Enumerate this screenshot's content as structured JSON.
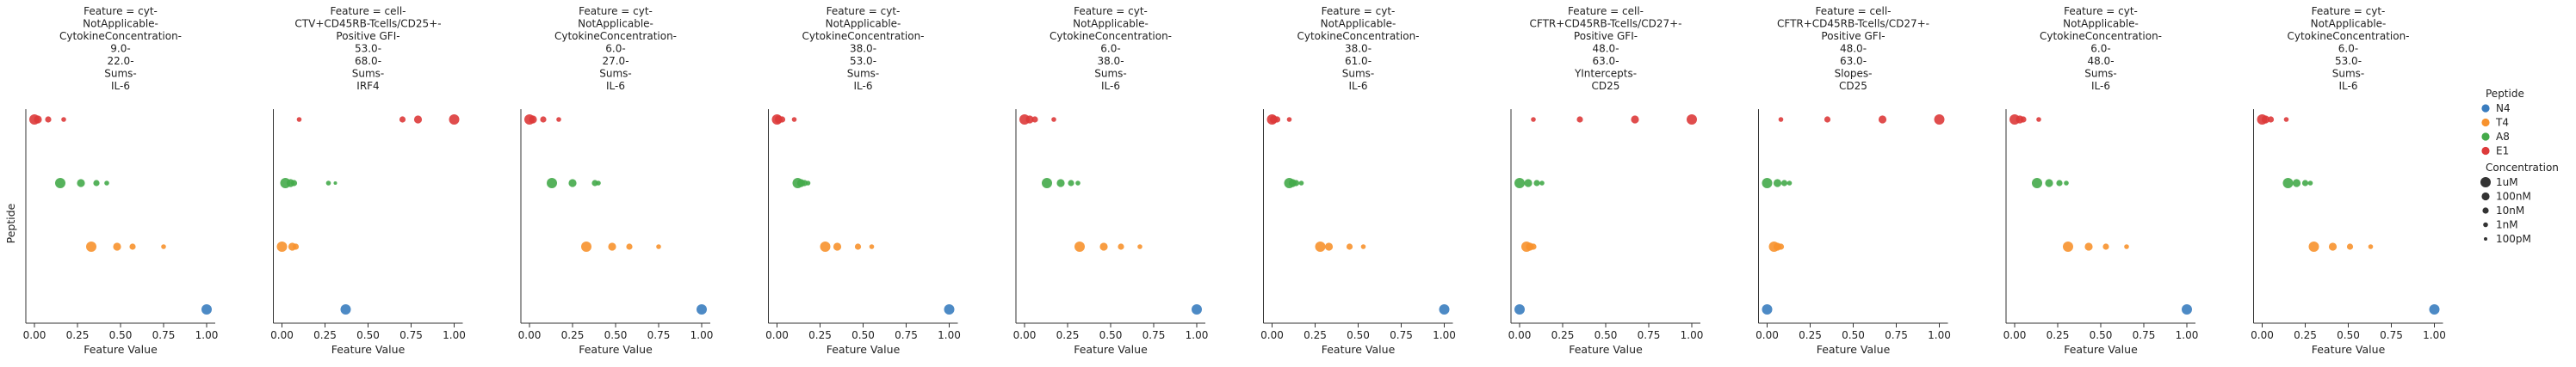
{
  "chart_data": {
    "type": "scatter",
    "xlabel": "Feature Value",
    "ylabel": "Peptide",
    "xlim": [
      -0.05,
      1.05
    ],
    "xticks": [
      0.0,
      0.25,
      0.5,
      0.75,
      1.0
    ],
    "xtick_labels": [
      "0.00",
      "0.25",
      "0.50",
      "0.75",
      "1.00"
    ],
    "y_order": [
      "E1",
      "A8",
      "T4",
      "N4"
    ],
    "peptides": [
      {
        "name": "N4",
        "color": "#3a7dbf"
      },
      {
        "name": "T4",
        "color": "#f7922e"
      },
      {
        "name": "A8",
        "color": "#44aa4a"
      },
      {
        "name": "E1",
        "color": "#dd3a3a"
      }
    ],
    "concentrations": [
      "1uM",
      "100nM",
      "10nM",
      "1nM",
      "100pM"
    ],
    "legend": {
      "hue_title": "Peptide",
      "size_title": "Concentration",
      "hue_entries": [
        "N4",
        "T4",
        "A8",
        "E1"
      ],
      "size_entries": [
        "1uM",
        "100nM",
        "10nM",
        "1nM",
        "100pM"
      ],
      "placement": "right"
    },
    "panels": [
      {
        "title_lines": [
          "Feature = cyt-",
          "NotApplicable-",
          "CytokineConcentration-",
          "9.0-",
          "22.0-",
          "Sums-",
          "IL-6"
        ],
        "series": {
          "N4": [
            1.0
          ],
          "T4": [
            0.33,
            0.48,
            0.57,
            0.75
          ],
          "A8": [
            0.15,
            0.27,
            0.36,
            0.42
          ],
          "E1": [
            0.0,
            0.02,
            0.08,
            0.17
          ]
        }
      },
      {
        "title_lines": [
          "Feature = cell-",
          "CTV+CD45RB-Tcells/CD25+-",
          "Positive GFI-",
          "53.0-",
          "68.0-",
          "Sums-",
          "IRF4"
        ],
        "series": {
          "N4": [
            0.37
          ],
          "T4": [
            0.0,
            0.06,
            0.08
          ],
          "A8": [
            0.02,
            0.05,
            0.07,
            0.27,
            0.31
          ],
          "E1": [
            1.0,
            0.79,
            0.7,
            0.1
          ]
        }
      },
      {
        "title_lines": [
          "Feature = cyt-",
          "NotApplicable-",
          "CytokineConcentration-",
          "6.0-",
          "27.0-",
          "Sums-",
          "IL-6"
        ],
        "series": {
          "N4": [
            1.0
          ],
          "T4": [
            0.33,
            0.48,
            0.58,
            0.75
          ],
          "A8": [
            0.13,
            0.25,
            0.38,
            0.4
          ],
          "E1": [
            0.0,
            0.02,
            0.08,
            0.17
          ]
        }
      },
      {
        "title_lines": [
          "Feature = cyt-",
          "NotApplicable-",
          "CytokineConcentration-",
          "38.0-",
          "53.0-",
          "Sums-",
          "IL-6"
        ],
        "series": {
          "N4": [
            1.0
          ],
          "T4": [
            0.28,
            0.35,
            0.47,
            0.55
          ],
          "A8": [
            0.12,
            0.14,
            0.16,
            0.18
          ],
          "E1": [
            0.0,
            0.01,
            0.03,
            0.1
          ]
        }
      },
      {
        "title_lines": [
          "Feature = cyt-",
          "NotApplicable-",
          "CytokineConcentration-",
          "6.0-",
          "38.0-",
          "Sums-",
          "IL-6"
        ],
        "series": {
          "N4": [
            1.0
          ],
          "T4": [
            0.32,
            0.46,
            0.56,
            0.67
          ],
          "A8": [
            0.13,
            0.21,
            0.27,
            0.31
          ],
          "E1": [
            0.0,
            0.03,
            0.06,
            0.17
          ]
        }
      },
      {
        "title_lines": [
          "Feature = cyt-",
          "NotApplicable-",
          "CytokineConcentration-",
          "38.0-",
          "61.0-",
          "Sums-",
          "IL-6"
        ],
        "series": {
          "N4": [
            1.0
          ],
          "T4": [
            0.28,
            0.33,
            0.45,
            0.53
          ],
          "A8": [
            0.1,
            0.12,
            0.14,
            0.17
          ],
          "E1": [
            0.0,
            0.01,
            0.03,
            0.1
          ]
        }
      },
      {
        "title_lines": [
          "Feature = cell-",
          "CFTR+CD45RB-Tcells/CD27+-",
          "Positive GFI-",
          "48.0-",
          "63.0-",
          "YIntercepts-",
          "CD25"
        ],
        "series": {
          "N4": [
            0.0
          ],
          "T4": [
            0.04,
            0.06,
            0.08
          ],
          "A8": [
            0.0,
            0.05,
            0.1,
            0.13
          ],
          "E1": [
            1.0,
            0.67,
            0.35,
            0.08
          ]
        }
      },
      {
        "title_lines": [
          "Feature = cell-",
          "CFTR+CD45RB-Tcells/CD27+-",
          "Positive GFI-",
          "48.0-",
          "63.0-",
          "Slopes-",
          "CD25"
        ],
        "series": {
          "N4": [
            0.0
          ],
          "T4": [
            0.04,
            0.06,
            0.08
          ],
          "A8": [
            0.0,
            0.06,
            0.1,
            0.13
          ],
          "E1": [
            1.0,
            0.67,
            0.35,
            0.08
          ]
        }
      },
      {
        "title_lines": [
          "Feature = cyt-",
          "NotApplicable-",
          "CytokineConcentration-",
          "6.0-",
          "48.0-",
          "Sums-",
          "IL-6"
        ],
        "series": {
          "N4": [
            1.0
          ],
          "T4": [
            0.31,
            0.43,
            0.53,
            0.65
          ],
          "A8": [
            0.13,
            0.2,
            0.26,
            0.3
          ],
          "E1": [
            0.0,
            0.03,
            0.05,
            0.14
          ]
        }
      },
      {
        "title_lines": [
          "Feature = cyt-",
          "NotApplicable-",
          "CytokineConcentration-",
          "6.0-",
          "53.0-",
          "Sums-",
          "IL-6"
        ],
        "series": {
          "N4": [
            1.0
          ],
          "T4": [
            0.3,
            0.41,
            0.51,
            0.63
          ],
          "A8": [
            0.15,
            0.2,
            0.25,
            0.28
          ],
          "E1": [
            0.0,
            0.02,
            0.05,
            0.14
          ]
        }
      }
    ]
  }
}
